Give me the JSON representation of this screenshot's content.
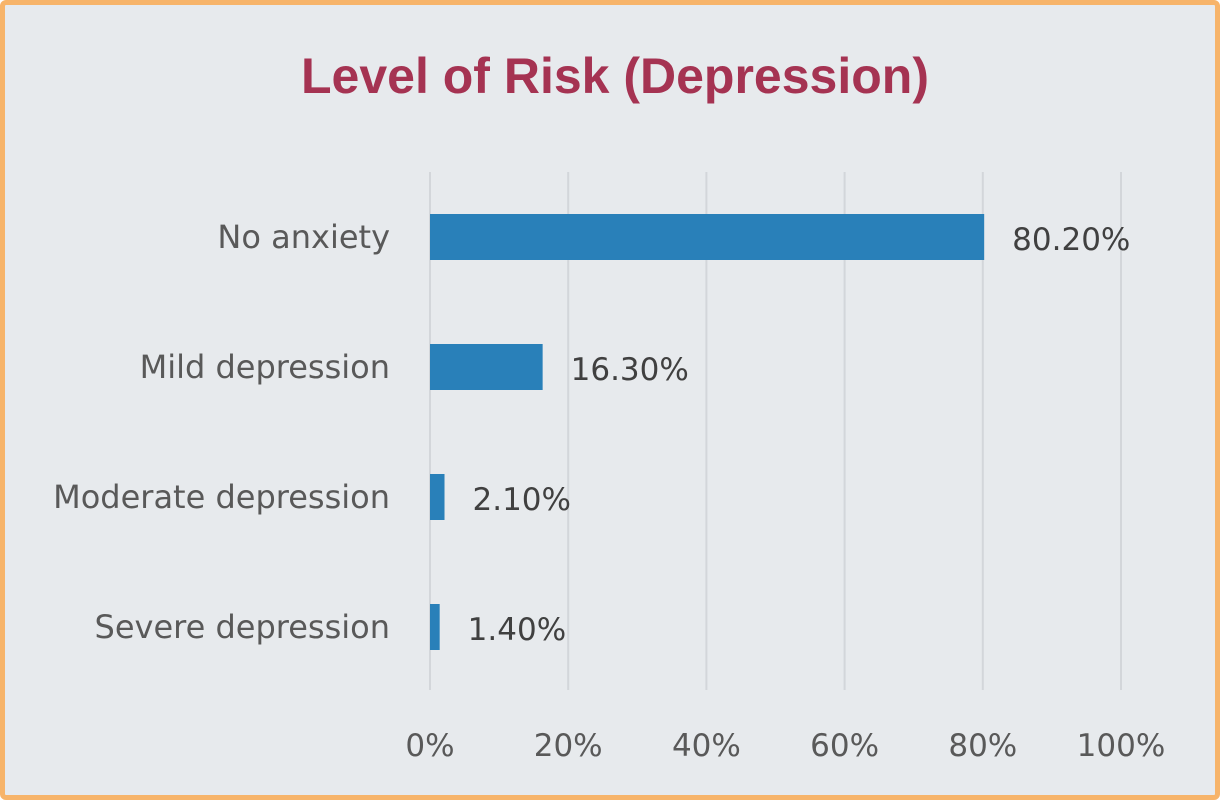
{
  "chart_data": {
    "type": "bar",
    "orientation": "horizontal",
    "title": "Level of Risk (Depression)",
    "categories": [
      "No anxiety",
      "Mild depression",
      "Moderate depression",
      "Severe depression"
    ],
    "values": [
      80.2,
      16.3,
      2.1,
      1.4
    ],
    "data_labels": [
      "80.20%",
      "16.30%",
      "2.10%",
      "1.40%"
    ],
    "xlim": [
      0,
      100
    ],
    "x_ticks": [
      "0%",
      "20%",
      "40%",
      "60%",
      "80%",
      "100%"
    ],
    "grid": "vertical",
    "legend": "none",
    "bar_color": "#2980b9",
    "title_color": "#a53352",
    "frame_color": "#f7b46a",
    "background_color": "#e7eaed"
  }
}
